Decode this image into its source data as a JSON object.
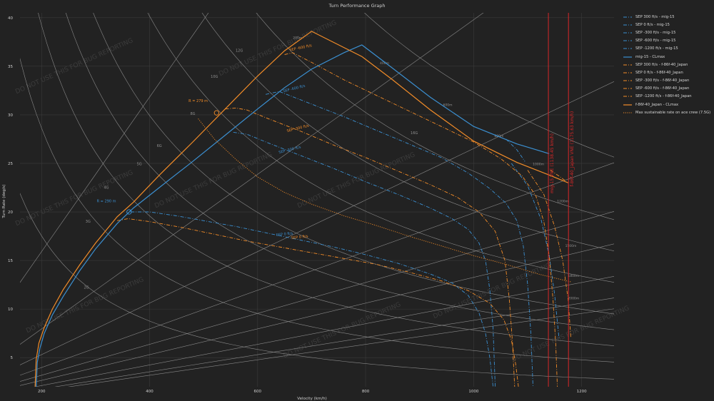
{
  "chart_data": {
    "type": "line",
    "title": "Turn Performance Graph",
    "xlabel": "Velocity (km/h)",
    "ylabel": "Turn Rate (deg/s)",
    "xlim": [
      160,
      1260
    ],
    "ylim": [
      2,
      40.5
    ],
    "xticks": [
      200,
      400,
      600,
      800,
      1000,
      1200
    ],
    "yticks": [
      5,
      10,
      15,
      20,
      25,
      30,
      35,
      40
    ],
    "grid": true,
    "legend_position": "right",
    "colors": {
      "mig": "#3b8fd0",
      "f86": "#f28c28",
      "vne": "#d62728",
      "grid": "#3b3b3b",
      "ref": "#8a8a8a"
    },
    "g_lines": [
      {
        "label": "2G",
        "g": 2,
        "lx": 283,
        "ly": 12.1
      },
      {
        "label": "3G",
        "g": 3,
        "lx": 286,
        "ly": 18.9
      },
      {
        "label": "4G",
        "g": 4,
        "lx": 320,
        "ly": 22.4
      },
      {
        "label": "5G",
        "g": 5,
        "lx": 381,
        "ly": 24.8
      },
      {
        "label": "6G",
        "g": 6,
        "lx": 418,
        "ly": 26.7
      },
      {
        "label": "8G",
        "g": 8,
        "lx": 480,
        "ly": 30
      },
      {
        "label": "10G",
        "g": 10,
        "lx": 520,
        "ly": 33.8
      },
      {
        "label": "12G",
        "g": 12,
        "lx": 566,
        "ly": 36.5
      },
      {
        "label": "16G",
        "g": 16,
        "lx": 890,
        "ly": 28
      }
    ],
    "radius_lines": [
      {
        "label": "200m",
        "r": 200,
        "lx": 674,
        "ly": 37.8
      },
      {
        "label": "400m",
        "r": 400,
        "lx": 835,
        "ly": 35.2
      },
      {
        "label": "600m",
        "r": 600,
        "lx": 952,
        "ly": 30.9
      },
      {
        "label": "800m",
        "r": 800,
        "lx": 1047,
        "ly": 27.7
      },
      {
        "label": "1000m",
        "r": 1000,
        "lx": 1120,
        "ly": 24.8
      },
      {
        "label": "1200m",
        "r": 1200,
        "lx": 1165,
        "ly": 21
      },
      {
        "label": "1500m",
        "r": 1500,
        "lx": 1180,
        "ly": 16.4
      },
      {
        "label": "1800m",
        "r": 1800,
        "lx": 1185,
        "ly": 13.3
      },
      {
        "label": "2000m",
        "r": 2000,
        "lx": 1185,
        "ly": 11
      }
    ],
    "series": [
      {
        "name": "SEP 300 ft/s - mig-15",
        "color": "#3b8fd0",
        "dash": "dashdot",
        "x": [
          555,
          580,
          620,
          680,
          740,
          800,
          860,
          920,
          960,
          990,
          1010,
          1022,
          1030,
          1036,
          1040
        ],
        "y": [
          28.2,
          28.0,
          27.1,
          25.8,
          24.5,
          23.1,
          21.8,
          20.4,
          19.3,
          18.2,
          16.8,
          15.0,
          12.0,
          8.0,
          2.0
        ]
      },
      {
        "name": "SEP 0 ft/s - mig-15",
        "color": "#3b8fd0",
        "dash": "dashdot",
        "x": [
          365,
          400,
          450,
          500,
          560,
          620,
          680,
          740,
          800,
          860,
          920,
          960,
          990,
          1010,
          1022,
          1030,
          1036
        ],
        "y": [
          20.0,
          20.0,
          19.6,
          19.1,
          18.5,
          17.8,
          17.1,
          16.4,
          15.6,
          14.7,
          13.6,
          12.7,
          11.4,
          9.6,
          7.5,
          5.0,
          2.0
        ]
      },
      {
        "name": "SEP -300 ft/s - mig-15",
        "color": "#3b8fd0",
        "dash": "dashdot",
        "x": [
          615,
          640,
          700,
          760,
          820,
          880,
          940,
          990,
          1030,
          1060,
          1080,
          1092,
          1100,
          1106,
          1110
        ],
        "y": [
          32.1,
          32.4,
          31.1,
          29.8,
          28.4,
          27.0,
          25.6,
          24.0,
          22.4,
          20.9,
          19.1,
          16.5,
          12.5,
          7.5,
          2.0
        ]
      },
      {
        "name": "SEP -600 ft/s - mig-15",
        "color": "#3b8fd0",
        "dash": "dashdot",
        "x": [
          1070,
          1100,
          1125,
          1140,
          1150,
          1158
        ],
        "y": [
          25.0,
          22.7,
          19.2,
          15.5,
          11.5,
          7.0
        ]
      },
      {
        "name": "SEP -1200 ft/s - mig-15",
        "color": "#3b8fd0",
        "dash": "dashdot",
        "x": [
          1060,
          1080,
          1095
        ],
        "y": [
          27.5,
          26.4,
          25.2
        ]
      },
      {
        "name": "SEP 300 ft/s - f-86f-40_Japan",
        "color": "#f28c28",
        "dash": "dashdot",
        "x": [
          540,
          560,
          580,
          620,
          680,
          740,
          800,
          860,
          920,
          970,
          1010,
          1040,
          1058,
          1066,
          1072,
          1076
        ],
        "y": [
          30.6,
          30.7,
          30.5,
          29.6,
          28.3,
          26.9,
          25.6,
          24.2,
          22.8,
          21.5,
          20.0,
          18.0,
          15.0,
          11.0,
          6.5,
          2.0
        ]
      },
      {
        "name": "SEP 0 ft/s - f-86f-40_Japan",
        "color": "#f28c28",
        "dash": "dashdot",
        "x": [
          340,
          360,
          400,
          460,
          520,
          580,
          640,
          700,
          760,
          820,
          880,
          940,
          990,
          1030,
          1056,
          1070,
          1078,
          1083
        ],
        "y": [
          19.1,
          19.3,
          19.0,
          18.4,
          17.7,
          17.0,
          16.4,
          15.8,
          15.2,
          14.6,
          13.8,
          12.9,
          11.9,
          10.6,
          8.9,
          6.8,
          4.3,
          2.0
        ]
      },
      {
        "name": "SEP -300 ft/s - f-86f-40_Japan",
        "color": "#f28c28",
        "dash": "dashdot",
        "x": [
          650,
          665,
          700,
          760,
          820,
          880,
          940,
          1000,
          1050,
          1090,
          1115,
          1130,
          1140,
          1147,
          1152,
          1155
        ],
        "y": [
          36.2,
          36.4,
          35.4,
          33.6,
          32.0,
          30.4,
          28.8,
          27.2,
          25.5,
          23.7,
          21.7,
          19.0,
          15.5,
          11.0,
          6.5,
          2.0
        ]
      },
      {
        "name": "SEP -600 ft/s - f-86f-40_Japan",
        "color": "#f28c28",
        "dash": "dashdot",
        "x": [
          1100,
          1130,
          1150,
          1165,
          1175,
          1180
        ],
        "y": [
          24.3,
          21.8,
          18.5,
          15.0,
          11.0,
          7.0
        ]
      },
      {
        "name": "SEP -1200 ft/s - f-86f-40_Japan",
        "color": "#f28c28",
        "dash": "dashdot",
        "x": [
          1142,
          1158,
          1170
        ],
        "y": [
          24.3,
          23.7,
          23.2
        ]
      },
      {
        "name": "mig-15 - CLmax",
        "color": "#3b8fd0",
        "dash": "solid",
        "x": [
          190,
          192,
          197,
          205,
          220,
          240,
          270,
          300,
          340,
          370,
          420,
          480,
          540,
          600,
          650,
          700,
          760,
          793,
          850,
          920,
          1000,
          1080,
          1140
        ],
        "y": [
          2.0,
          4.5,
          6.0,
          7.5,
          9.4,
          11.3,
          13.9,
          16.2,
          18.8,
          20.4,
          22.6,
          25.2,
          27.9,
          30.6,
          32.8,
          34.7,
          36.4,
          37.2,
          34.8,
          31.8,
          28.8,
          27.0,
          26.0
        ]
      },
      {
        "name": "f-86f-40_Japan - CLmax",
        "color": "#f28c28",
        "dash": "solid",
        "x": [
          188,
          190,
          195,
          205,
          220,
          240,
          270,
          300,
          340,
          370,
          420,
          480,
          540,
          600,
          650,
          700,
          793,
          850,
          920,
          1000,
          1080,
          1140,
          1175
        ],
        "y": [
          2.0,
          4.8,
          6.5,
          8.1,
          10.0,
          12.0,
          14.5,
          16.8,
          19.5,
          21.0,
          23.9,
          27.2,
          30.6,
          34.0,
          36.6,
          38.6,
          36.0,
          33.6,
          30.5,
          27.3,
          25.1,
          23.8,
          23.0
        ]
      },
      {
        "name": "Max sustainable rate on ace crew (7.5G)",
        "color": "#f28c28",
        "dash": "dotted",
        "x": [
          490,
          520,
          560,
          600,
          650,
          700,
          760,
          820,
          880,
          940,
          1000,
          1060,
          1120,
          1180
        ],
        "y": [
          29.6,
          27.5,
          25.4,
          23.6,
          22.0,
          20.8,
          19.6,
          18.6,
          17.5,
          16.5,
          15.5,
          14.6,
          13.6,
          12.8
        ]
      }
    ],
    "vne_lines": [
      {
        "label": "mig-15 VNE (1138.45 km/h)",
        "x": 1138.45,
        "label_y": 25
      },
      {
        "label": "f-86f-40_Japan VNE (1175.63 km/h)",
        "x": 1175.63,
        "label_y": 26.5
      }
    ],
    "annotations": [
      {
        "text": "SEP -600 ft/s",
        "x": 680,
        "y": 36.8,
        "color": "#f28c28",
        "rot": -12
      },
      {
        "text": "SEP -600 ft/s",
        "x": 668,
        "y": 32.6,
        "color": "#3b8fd0",
        "rot": -14
      },
      {
        "text": "SEP -300 ft/s",
        "x": 675,
        "y": 28.5,
        "color": "#f28c28",
        "rot": -14
      },
      {
        "text": "SEP -300 ft/s",
        "x": 660,
        "y": 26.3,
        "color": "#3b8fd0",
        "rot": -14
      },
      {
        "text": "SEP 0 ft/s",
        "x": 650,
        "y": 17.6,
        "color": "#3b8fd0",
        "rot": -6
      },
      {
        "text": "SEP 0 ft/s",
        "x": 678,
        "y": 17.3,
        "color": "#f28c28",
        "rot": -6
      },
      {
        "text": "R = 279 m",
        "x": 490,
        "y": 31.3,
        "color": "#f28c28",
        "rot": 0
      },
      {
        "text": "R = 290 m",
        "x": 320,
        "y": 21.0,
        "color": "#3b8fd0",
        "rot": 0
      }
    ],
    "markers": [
      {
        "x": 524,
        "y": 30.2,
        "color": "#f28c28"
      },
      {
        "x": 362,
        "y": 20.0,
        "color": "#3b8fd0"
      }
    ],
    "watermark": "DO NOT USE THIS FOR BUG REPORTING"
  },
  "legend": {
    "items": [
      {
        "label": "SEP 300 ft/s - mig-15",
        "color": "#3b8fd0",
        "dash": "dashdot"
      },
      {
        "label": "SEP 0 ft/s - mig-15",
        "color": "#3b8fd0",
        "dash": "dashdot"
      },
      {
        "label": "SEP -300 ft/s - mig-15",
        "color": "#3b8fd0",
        "dash": "dashdot"
      },
      {
        "label": "SEP -600 ft/s - mig-15",
        "color": "#3b8fd0",
        "dash": "dashdot"
      },
      {
        "label": "SEP -1200 ft/s - mig-15",
        "color": "#3b8fd0",
        "dash": "dashdot"
      },
      {
        "label": "mig-15 - CLmax",
        "color": "#3b8fd0",
        "dash": "solid"
      },
      {
        "label": "SEP 300 ft/s - f-86f-40_Japan",
        "color": "#f28c28",
        "dash": "dashdot"
      },
      {
        "label": "SEP 0 ft/s - f-86f-40_Japan",
        "color": "#f28c28",
        "dash": "dashdot"
      },
      {
        "label": "SEP -300 ft/s - f-86f-40_Japan",
        "color": "#f28c28",
        "dash": "dashdot"
      },
      {
        "label": "SEP -600 ft/s - f-86f-40_Japan",
        "color": "#f28c28",
        "dash": "dashdot"
      },
      {
        "label": "SEP -1200 ft/s - f-86f-40_Japan",
        "color": "#f28c28",
        "dash": "dashdot"
      },
      {
        "label": "f-86f-40_Japan - CLmax",
        "color": "#f28c28",
        "dash": "solid"
      },
      {
        "label": "Max sustainable rate on ace crew (7.5G)",
        "color": "#f28c28",
        "dash": "dotted"
      }
    ]
  }
}
